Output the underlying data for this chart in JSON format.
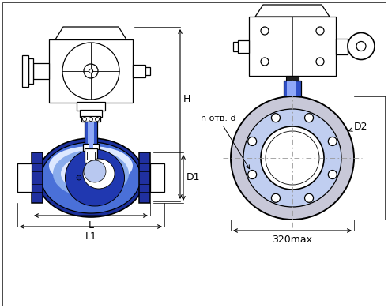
{
  "bg_color": "#ffffff",
  "lc": "#000000",
  "blue_dark": "#1a2e99",
  "blue_mid": "#3050c8",
  "blue_body": "#4a70d8",
  "blue_light": "#8aacec",
  "blue_very_light": "#c0cef0",
  "blue_highlight": "#dde8ff",
  "blue_flange": "#2030a0",
  "grey_light": "#c8c8d8",
  "grey_mid": "#a0a0b8",
  "white": "#ffffff",
  "stem_blue": "#5060e0",
  "stem_light": "#90a8f8",
  "label_H": "H",
  "label_D1": "D1",
  "label_L": "L",
  "label_L1": "L1",
  "label_notv": "n отв. d",
  "label_D2": "D2",
  "label_320max": "320max"
}
